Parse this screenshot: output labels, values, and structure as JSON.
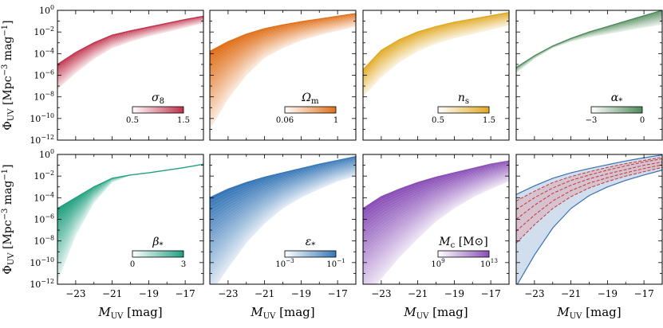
{
  "chart_data": [
    {
      "type": "area",
      "panel": "sigma8",
      "title": "σ8",
      "colormap": {
        "label": "σ",
        "label_sub": "8",
        "ticks": [
          "0.5",
          "1.5"
        ],
        "start": "#ffffff",
        "end": "#c0304a"
      },
      "xlim": [
        -24,
        -16
      ],
      "ylim_log10": [
        -12,
        0
      ],
      "upper": [
        [
          -24,
          -5.0
        ],
        [
          -23,
          -3.9
        ],
        [
          -22,
          -3.0
        ],
        [
          -21,
          -2.3
        ],
        [
          -20,
          -1.9
        ],
        [
          -19,
          -1.55
        ],
        [
          -18,
          -1.2
        ],
        [
          -17,
          -0.85
        ],
        [
          -16,
          -0.55
        ]
      ],
      "lower": [
        [
          -24,
          -7.3
        ],
        [
          -23,
          -5.8
        ],
        [
          -22,
          -4.5
        ],
        [
          -21,
          -3.5
        ],
        [
          -20,
          -2.9
        ],
        [
          -19,
          -2.4
        ],
        [
          -18,
          -2.0
        ],
        [
          -17,
          -1.6
        ],
        [
          -16,
          -1.2
        ]
      ]
    },
    {
      "type": "area",
      "panel": "omega_m",
      "title": "Ωm",
      "colormap": {
        "label": "Ω",
        "label_sub": "m",
        "ticks": [
          "0.06",
          "1"
        ],
        "start": "#ffffff",
        "end": "#e0701a"
      },
      "xlim": [
        -24,
        -16
      ],
      "ylim_log10": [
        -12,
        0
      ],
      "upper": [
        [
          -24,
          -3.8
        ],
        [
          -23,
          -2.9
        ],
        [
          -22,
          -2.2
        ],
        [
          -21,
          -1.7
        ],
        [
          -20,
          -1.35
        ],
        [
          -19,
          -1.05
        ],
        [
          -18,
          -0.8
        ],
        [
          -17,
          -0.55
        ],
        [
          -16,
          -0.3
        ]
      ],
      "lower": [
        [
          -24,
          -11.0
        ],
        [
          -23,
          -8.2
        ],
        [
          -22,
          -6.0
        ],
        [
          -21,
          -4.4
        ],
        [
          -20,
          -3.5
        ],
        [
          -19,
          -2.8
        ],
        [
          -18,
          -2.3
        ],
        [
          -17,
          -1.9
        ],
        [
          -16,
          -1.5
        ]
      ]
    },
    {
      "type": "area",
      "panel": "n_s",
      "title": "ns",
      "colormap": {
        "label": "n",
        "label_sub": "s",
        "ticks": [
          "0.5",
          "1.5"
        ],
        "start": "#ffffff",
        "end": "#e0a820"
      },
      "xlim": [
        -24,
        -16
      ],
      "ylim_log10": [
        -12,
        0
      ],
      "upper": [
        [
          -24,
          -5.5
        ],
        [
          -23,
          -3.7
        ],
        [
          -22,
          -2.7
        ],
        [
          -21,
          -2.0
        ],
        [
          -20,
          -1.5
        ],
        [
          -19,
          -1.1
        ],
        [
          -18,
          -0.8
        ],
        [
          -17,
          -0.5
        ],
        [
          -16,
          -0.2
        ]
      ],
      "lower": [
        [
          -24,
          -8.0
        ],
        [
          -23,
          -6.2
        ],
        [
          -22,
          -4.8
        ],
        [
          -21,
          -3.8
        ],
        [
          -20,
          -3.1
        ],
        [
          -19,
          -2.6
        ],
        [
          -18,
          -2.2
        ],
        [
          -17,
          -1.8
        ],
        [
          -16,
          -1.4
        ]
      ]
    },
    {
      "type": "area",
      "panel": "alpha_star",
      "title": "α*",
      "colormap": {
        "label": "α",
        "label_sub": "*",
        "ticks": [
          "−3",
          "0"
        ],
        "start": "#ffffff",
        "end": "#4f8a5a"
      },
      "xlim": [
        -24,
        -16
      ],
      "ylim_log10": [
        -12,
        0
      ],
      "upper": [
        [
          -24,
          -5.3
        ],
        [
          -23,
          -4.2
        ],
        [
          -22,
          -3.3
        ],
        [
          -21,
          -2.6
        ],
        [
          -20,
          -2.0
        ],
        [
          -19,
          -1.5
        ],
        [
          -18,
          -1.0
        ],
        [
          -17,
          -0.5
        ],
        [
          -16,
          0.0
        ]
      ],
      "lower": [
        [
          -24,
          -5.8
        ],
        [
          -23,
          -4.5
        ],
        [
          -22,
          -3.5
        ],
        [
          -21,
          -2.9
        ],
        [
          -20,
          -2.5
        ],
        [
          -19,
          -2.2
        ],
        [
          -18,
          -1.9
        ],
        [
          -17,
          -1.6
        ],
        [
          -16,
          -1.3
        ]
      ]
    },
    {
      "type": "area",
      "panel": "beta_star",
      "title": "β*",
      "colormap": {
        "label": "β",
        "label_sub": "*",
        "ticks": [
          "0",
          "3"
        ],
        "start": "#ffffff",
        "end": "#20a080"
      },
      "xlim": [
        -24,
        -16
      ],
      "ylim_log10": [
        -12,
        0
      ],
      "upper": [
        [
          -24,
          -5.0
        ],
        [
          -23,
          -4.0
        ],
        [
          -22,
          -3.0
        ],
        [
          -21,
          -2.2
        ],
        [
          -20,
          -1.9
        ],
        [
          -19,
          -1.7
        ],
        [
          -18,
          -1.45
        ],
        [
          -17,
          -1.2
        ],
        [
          -16,
          -0.9
        ]
      ],
      "lower": [
        [
          -24,
          -11.8
        ],
        [
          -23,
          -7.5
        ],
        [
          -22,
          -4.5
        ],
        [
          -21,
          -2.6
        ],
        [
          -20,
          -1.95
        ],
        [
          -19,
          -1.7
        ],
        [
          -18,
          -1.45
        ],
        [
          -17,
          -1.2
        ],
        [
          -16,
          -0.9
        ]
      ]
    },
    {
      "type": "area",
      "panel": "epsilon_star",
      "title": "ε*",
      "colormap": {
        "label": "ε",
        "label_sub": "*",
        "ticks": [
          "10−3",
          "10−1"
        ],
        "start": "#ffffff",
        "end": "#3878b8"
      },
      "xlim": [
        -24,
        -16
      ],
      "ylim_log10": [
        -12,
        0
      ],
      "upper": [
        [
          -24,
          -4.0
        ],
        [
          -23,
          -3.2
        ],
        [
          -22,
          -2.6
        ],
        [
          -21,
          -2.1
        ],
        [
          -20,
          -1.7
        ],
        [
          -19,
          -1.3
        ],
        [
          -18,
          -0.9
        ],
        [
          -17,
          -0.55
        ],
        [
          -16,
          -0.2
        ]
      ],
      "lower": [
        [
          -24,
          -13.0
        ],
        [
          -23,
          -10.5
        ],
        [
          -22,
          -8.2
        ],
        [
          -21,
          -6.4
        ],
        [
          -20,
          -5.0
        ],
        [
          -19,
          -4.0
        ],
        [
          -18,
          -3.2
        ],
        [
          -17,
          -2.5
        ],
        [
          -16,
          -2.0
        ]
      ]
    },
    {
      "type": "area",
      "panel": "M_c",
      "title": "Mc [M⊙]",
      "colormap": {
        "label": "M",
        "label_sub": "c",
        "label_suffix": " [M⊙]",
        "ticks": [
          "109",
          "1013"
        ],
        "start": "#ffffff",
        "end": "#8a50b8"
      },
      "xlim": [
        -24,
        -16
      ],
      "ylim_log10": [
        -12,
        0
      ],
      "upper": [
        [
          -24,
          -5.0
        ],
        [
          -23,
          -3.9
        ],
        [
          -22,
          -3.2
        ],
        [
          -21,
          -2.6
        ],
        [
          -20,
          -2.1
        ],
        [
          -19,
          -1.7
        ],
        [
          -18,
          -1.3
        ],
        [
          -17,
          -0.9
        ],
        [
          -16,
          -0.6
        ]
      ],
      "lower": [
        [
          -24,
          -13.5
        ],
        [
          -23,
          -11.5
        ],
        [
          -22,
          -9.5
        ],
        [
          -21,
          -7.8
        ],
        [
          -20,
          -6.2
        ],
        [
          -19,
          -5.0
        ],
        [
          -18,
          -4.0
        ],
        [
          -17,
          -3.2
        ],
        [
          -16,
          -2.5
        ]
      ]
    },
    {
      "type": "line",
      "panel": "summary",
      "outer_band": {
        "color": "#3a70b0",
        "upper": [
          [
            -24,
            -3.7
          ],
          [
            -23,
            -2.9
          ],
          [
            -22,
            -2.2
          ],
          [
            -21,
            -1.7
          ],
          [
            -20,
            -1.3
          ],
          [
            -19,
            -0.95
          ],
          [
            -18,
            -0.6
          ],
          [
            -17,
            -0.3
          ],
          [
            -16,
            -0.05
          ]
        ],
        "lower": [
          [
            -24,
            -12.2
          ],
          [
            -23,
            -9.3
          ],
          [
            -22,
            -6.8
          ],
          [
            -21,
            -5.0
          ],
          [
            -20,
            -3.8
          ],
          [
            -19,
            -3.0
          ],
          [
            -18,
            -2.4
          ],
          [
            -17,
            -1.9
          ],
          [
            -16,
            -1.45
          ]
        ]
      },
      "inner_band": {
        "color": "#c03838",
        "upper": [
          [
            -24,
            -4.3
          ],
          [
            -23,
            -3.4
          ],
          [
            -22,
            -2.6
          ],
          [
            -21,
            -2.05
          ],
          [
            -20,
            -1.6
          ],
          [
            -19,
            -1.2
          ],
          [
            -18,
            -0.85
          ],
          [
            -17,
            -0.55
          ],
          [
            -16,
            -0.25
          ]
        ],
        "lower": [
          [
            -24,
            -8.2
          ],
          [
            -23,
            -6.5
          ],
          [
            -22,
            -5.0
          ],
          [
            -21,
            -3.9
          ],
          [
            -20,
            -3.1
          ],
          [
            -19,
            -2.5
          ],
          [
            -18,
            -2.0
          ],
          [
            -17,
            -1.6
          ],
          [
            -16,
            -1.2
          ]
        ]
      },
      "dashed_curves": [
        [
          [
            -24,
            -5.1
          ],
          [
            -23,
            -4.0
          ],
          [
            -22,
            -3.1
          ],
          [
            -21,
            -2.4
          ],
          [
            -20,
            -1.9
          ],
          [
            -19,
            -1.45
          ],
          [
            -18,
            -1.05
          ],
          [
            -17,
            -0.7
          ],
          [
            -16,
            -0.4
          ]
        ],
        [
          [
            -24,
            -6.0
          ],
          [
            -23,
            -4.7
          ],
          [
            -22,
            -3.6
          ],
          [
            -21,
            -2.85
          ],
          [
            -20,
            -2.25
          ],
          [
            -19,
            -1.8
          ],
          [
            -18,
            -1.4
          ],
          [
            -17,
            -1.0
          ],
          [
            -16,
            -0.7
          ]
        ],
        [
          [
            -24,
            -7.1
          ],
          [
            -23,
            -5.6
          ],
          [
            -22,
            -4.3
          ],
          [
            -21,
            -3.35
          ],
          [
            -20,
            -2.65
          ],
          [
            -19,
            -2.15
          ],
          [
            -18,
            -1.7
          ],
          [
            -17,
            -1.3
          ],
          [
            -16,
            -0.95
          ]
        ]
      ],
      "xlim": [
        -24,
        -16
      ],
      "ylim_log10": [
        -12,
        0
      ]
    }
  ],
  "axes": {
    "ylabel": "ΦUV [Mpc−3 mag−1]",
    "ylabel_main": "Φ",
    "ylabel_sub": "UV",
    "ylabel_unit_a": " [Mpc",
    "ylabel_exp_a": "−3",
    "ylabel_unit_b": " mag",
    "ylabel_exp_b": "−1",
    "ylabel_close": "]",
    "xlabel": "MUV [mag]",
    "xlabel_main": "M",
    "xlabel_sub": "UV",
    "xlabel_unit": " [mag]",
    "x_ticks": [
      "−23",
      "−21",
      "−19",
      "−17"
    ],
    "x_tick_values": [
      -23,
      -21,
      -19,
      -17
    ],
    "y_tick_base": "10",
    "y_tick_exponents": [
      "0",
      "−2",
      "−4",
      "−6",
      "−8",
      "−10",
      "−12"
    ],
    "y_tick_values": [
      0,
      -2,
      -4,
      -6,
      -8,
      -10,
      -12
    ]
  }
}
